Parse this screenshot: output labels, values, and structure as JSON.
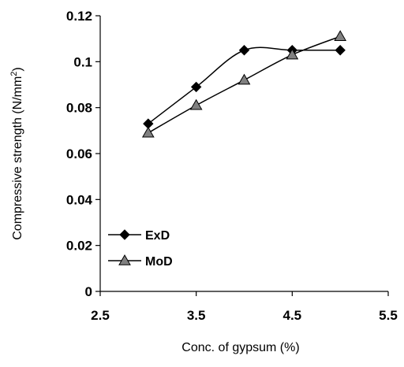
{
  "chart_data": {
    "type": "line",
    "title": "",
    "xlabel": "Conc. of gypsum (%)",
    "ylabel": "Compressive strength (N/mm",
    "ylabel_superscript": "2",
    "ylabel_suffix": ")",
    "xlim": [
      2.5,
      5.5
    ],
    "ylim": [
      0,
      0.12
    ],
    "x_ticks": [
      "2.5",
      "3.5",
      "4.5",
      "5.5"
    ],
    "y_ticks": [
      "0",
      "0.02",
      "0.04",
      "0.06",
      "0.08",
      "0.1",
      "0.12"
    ],
    "grid": false,
    "legend_position": "bottom-left",
    "x": [
      3,
      3.5,
      4,
      4.5,
      5
    ],
    "series": [
      {
        "name": "ExD",
        "marker": "diamond",
        "color": "#000000",
        "values": [
          0.073,
          0.089,
          0.105,
          0.105,
          0.105
        ]
      },
      {
        "name": "MoD",
        "marker": "triangle",
        "color": "#808080",
        "values": [
          0.069,
          0.081,
          0.092,
          0.103,
          0.111
        ]
      }
    ]
  }
}
